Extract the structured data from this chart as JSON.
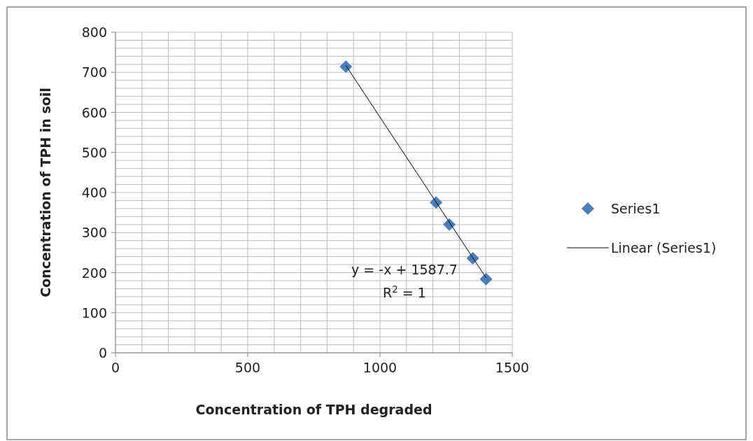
{
  "chart_data": {
    "type": "scatter",
    "xlabel": "Concentration of TPH degraded",
    "ylabel": "Concentration of TPH in soil",
    "xlim": [
      0,
      1500
    ],
    "ylim": [
      0,
      800
    ],
    "xticks": [
      0,
      {
        "value": 100,
        "label": null
      },
      {
        "value": 200,
        "label": null
      },
      {
        "value": 300,
        "label": null
      },
      {
        "value": 400,
        "label": null
      },
      500,
      {
        "value": 600,
        "label": null
      },
      {
        "value": 700,
        "label": null
      },
      {
        "value": 800,
        "label": null
      },
      {
        "value": 900,
        "label": null
      },
      1000,
      {
        "value": 1100,
        "label": null
      },
      {
        "value": 1200,
        "label": null
      },
      {
        "value": 1300,
        "label": null
      },
      {
        "value": 1400,
        "label": null
      },
      1500
    ],
    "yticks": [
      0,
      {
        "value": 20,
        "label": null
      },
      {
        "value": 40,
        "label": null
      },
      {
        "value": 60,
        "label": null
      },
      {
        "value": 80,
        "label": null
      },
      100,
      {
        "value": 120,
        "label": null
      },
      {
        "value": 140,
        "label": null
      },
      {
        "value": 160,
        "label": null
      },
      {
        "value": 180,
        "label": null
      },
      200,
      {
        "value": 220,
        "label": null
      },
      {
        "value": 240,
        "label": null
      },
      {
        "value": 260,
        "label": null
      },
      {
        "value": 280,
        "label": null
      },
      300,
      {
        "value": 320,
        "label": null
      },
      {
        "value": 340,
        "label": null
      },
      {
        "value": 360,
        "label": null
      },
      {
        "value": 380,
        "label": null
      },
      400,
      {
        "value": 420,
        "label": null
      },
      {
        "value": 440,
        "label": null
      },
      {
        "value": 460,
        "label": null
      },
      {
        "value": 480,
        "label": null
      },
      500,
      {
        "value": 520,
        "label": null
      },
      {
        "value": 540,
        "label": null
      },
      {
        "value": 560,
        "label": null
      },
      {
        "value": 580,
        "label": null
      },
      600,
      {
        "value": 620,
        "label": null
      },
      {
        "value": 640,
        "label": null
      },
      {
        "value": 660,
        "label": null
      },
      {
        "value": 680,
        "label": null
      },
      700,
      {
        "value": 720,
        "label": null
      },
      {
        "value": 740,
        "label": null
      },
      {
        "value": 760,
        "label": null
      },
      {
        "value": 780,
        "label": null
      },
      800
    ],
    "grid": true,
    "legend": "right",
    "series": [
      {
        "name": "Series1",
        "marker": "diamond",
        "color": "#4a7ebb",
        "x": [
          871,
          1212,
          1262,
          1351,
          1401
        ],
        "values": [
          714,
          375,
          320,
          236,
          184
        ]
      },
      {
        "name": "Linear (Series1)",
        "type": "line",
        "color": "#000000",
        "line_style": "solid",
        "marker": "none",
        "x": [
          871,
          1401
        ],
        "values": [
          717,
          187
        ]
      }
    ],
    "annotations": [
      "y = -x + 1587.7",
      "R$^{2}$ = 1"
    ]
  }
}
